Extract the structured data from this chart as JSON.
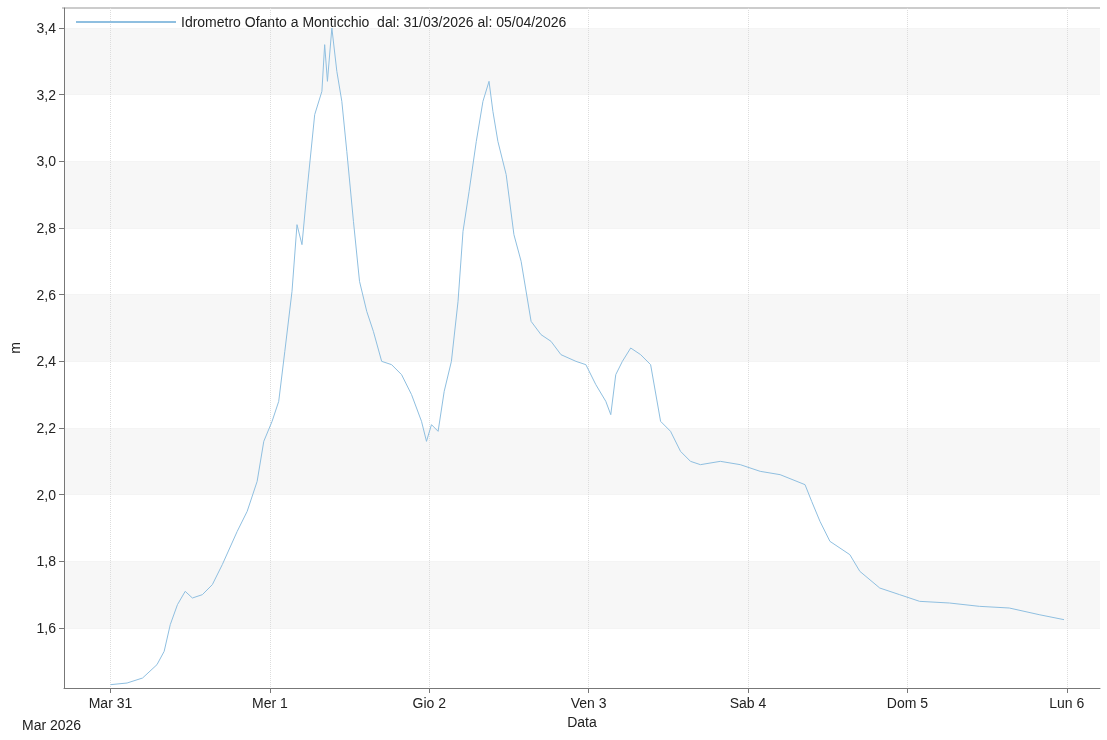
{
  "chart_data": {
    "type": "line",
    "xlabel": "Data",
    "ylabel": "m",
    "annotations": [
      "Mar 2026"
    ],
    "xlim": [
      "2026-03-30T17:00",
      "2026-04-06T05:00"
    ],
    "xticks": [
      {
        "value": "2026-03-31",
        "label": "Mar 31"
      },
      {
        "value": "2026-04-01",
        "label": "Mer 1"
      },
      {
        "value": "2026-04-02",
        "label": "Gio 2"
      },
      {
        "value": "2026-04-03",
        "label": "Ven 3"
      },
      {
        "value": "2026-04-04",
        "label": "Sab 4"
      },
      {
        "value": "2026-04-05",
        "label": "Dom 5"
      },
      {
        "value": "2026-04-06",
        "label": "Lun 6"
      }
    ],
    "ylim": [
      1.42,
      3.46
    ],
    "yticks": [
      {
        "value": 1.6,
        "label": "1,6"
      },
      {
        "value": 1.8,
        "label": "1,8"
      },
      {
        "value": 2.0,
        "label": "2,0"
      },
      {
        "value": 2.2,
        "label": "2,2"
      },
      {
        "value": 2.4,
        "label": "2,4"
      },
      {
        "value": 2.6,
        "label": "2,6"
      },
      {
        "value": 2.8,
        "label": "2,8"
      },
      {
        "value": 3.0,
        "label": "3,0"
      },
      {
        "value": 3.2,
        "label": "3,2"
      },
      {
        "value": 3.4,
        "label": "3,4"
      }
    ],
    "grid": true,
    "legend": "top left",
    "marker": "none",
    "line_style": "solid",
    "series": [
      {
        "name": "Idrometro Ofanto a Monticchio  dal: 31/03/2026 al: 05/04/2026",
        "color": "#8fbfe0",
        "x": [
          "2026-03-31T00:00",
          "2026-03-31T02:30",
          "2026-03-31T04:50",
          "2026-03-31T07:00",
          "2026-03-31T08:05",
          "2026-03-31T09:00",
          "2026-03-31T10:05",
          "2026-03-31T11:15",
          "2026-03-31T12:20",
          "2026-03-31T13:50",
          "2026-03-31T15:20",
          "2026-03-31T16:50",
          "2026-03-31T19:05",
          "2026-03-31T20:35",
          "2026-03-31T22:05",
          "2026-03-31T23:05",
          "2026-04-01T00:20",
          "2026-04-01T01:20",
          "2026-04-01T02:15",
          "2026-04-01T03:20",
          "2026-04-01T04:05",
          "2026-04-01T04:50",
          "2026-04-01T05:35",
          "2026-04-01T06:45",
          "2026-04-01T07:50",
          "2026-04-01T08:15",
          "2026-04-01T08:40",
          "2026-04-01T09:20",
          "2026-04-01T10:05",
          "2026-04-01T10:50",
          "2026-04-01T11:35",
          "2026-04-01T12:35",
          "2026-04-01T13:30",
          "2026-04-01T14:35",
          "2026-04-01T15:35",
          "2026-04-01T16:50",
          "2026-04-01T18:20",
          "2026-04-01T19:50",
          "2026-04-01T21:20",
          "2026-04-01T22:50",
          "2026-04-01T23:35",
          "2026-04-02T00:20",
          "2026-04-02T01:20",
          "2026-04-02T02:15",
          "2026-04-02T03:20",
          "2026-04-02T04:20",
          "2026-04-02T05:05",
          "2026-04-02T06:00",
          "2026-04-02T07:05",
          "2026-04-02T08:05",
          "2026-04-02T09:00",
          "2026-04-02T09:35",
          "2026-04-02T10:20",
          "2026-04-02T11:35",
          "2026-04-02T12:45",
          "2026-04-02T13:50",
          "2026-04-02T15:20",
          "2026-04-02T16:50",
          "2026-04-02T18:20",
          "2026-04-02T19:50",
          "2026-04-02T22:05",
          "2026-04-02T23:35",
          "2026-04-03T01:05",
          "2026-04-03T02:35",
          "2026-04-03T03:20",
          "2026-04-03T04:05",
          "2026-04-03T05:05",
          "2026-04-03T06:20",
          "2026-04-03T07:50",
          "2026-04-03T09:20",
          "2026-04-03T10:50",
          "2026-04-03T12:20",
          "2026-04-03T13:50",
          "2026-04-03T15:20",
          "2026-04-03T16:50",
          "2026-04-03T19:50",
          "2026-04-03T22:50",
          "2026-04-04T01:50",
          "2026-04-04T04:50",
          "2026-04-04T08:35",
          "2026-04-04T09:35",
          "2026-04-04T10:50",
          "2026-04-04T12:20",
          "2026-04-04T15:20",
          "2026-04-04T16:50",
          "2026-04-04T19:50",
          "2026-04-04T22:50",
          "2026-04-05T01:50",
          "2026-04-05T06:20",
          "2026-04-05T10:50",
          "2026-04-05T15:20",
          "2026-04-05T19:50",
          "2026-04-05T23:35"
        ],
        "values": [
          1.43,
          1.435,
          1.45,
          1.49,
          1.53,
          1.61,
          1.67,
          1.71,
          1.69,
          1.7,
          1.73,
          1.79,
          1.89,
          1.95,
          2.04,
          2.16,
          2.22,
          2.28,
          2.43,
          2.61,
          2.81,
          2.75,
          2.91,
          3.14,
          3.21,
          3.35,
          3.24,
          3.4,
          3.27,
          3.18,
          3.03,
          2.82,
          2.64,
          2.55,
          2.49,
          2.4,
          2.39,
          2.36,
          2.3,
          2.22,
          2.16,
          2.21,
          2.19,
          2.31,
          2.4,
          2.58,
          2.79,
          2.91,
          3.06,
          3.18,
          3.24,
          3.15,
          3.06,
          2.96,
          2.78,
          2.7,
          2.52,
          2.48,
          2.46,
          2.42,
          2.4,
          2.39,
          2.33,
          2.28,
          2.24,
          2.36,
          2.4,
          2.44,
          2.42,
          2.39,
          2.22,
          2.19,
          2.13,
          2.1,
          2.09,
          2.1,
          2.09,
          2.07,
          2.06,
          2.03,
          1.98,
          1.92,
          1.86,
          1.82,
          1.77,
          1.72,
          1.7,
          1.68,
          1.675,
          1.665,
          1.66,
          1.64,
          1.625
        ]
      }
    ]
  }
}
